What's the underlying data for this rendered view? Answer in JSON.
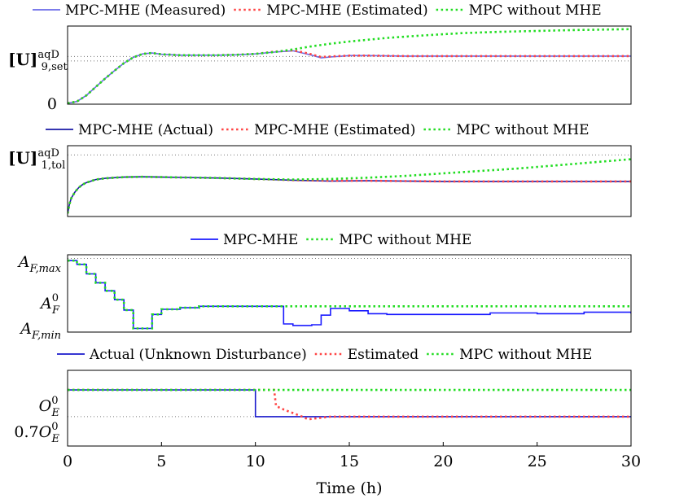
{
  "chart_data": [
    {
      "type": "line",
      "legend": [
        "MPC-MHE (Measured)",
        "MPC-MHE (Estimated)",
        "MPC without MHE"
      ],
      "legend_placement": "top",
      "ylabel_main": "[U]",
      "ylabel_sup": "aqD",
      "ylabel_sub": "9,set",
      "yticks": [
        "0"
      ],
      "xlim": [
        0,
        30
      ],
      "ylim": [
        -0.02,
        1.75
      ],
      "ref_lines": [
        0.96,
        1.06
      ],
      "series": [
        {
          "name": "MPC-MHE (Measured)",
          "color": "#6a6ae8",
          "style": "solid",
          "x": [
            0,
            0.5,
            1,
            1.5,
            2,
            2.5,
            3,
            3.5,
            4,
            4.5,
            5,
            6,
            7,
            8,
            9,
            10,
            11,
            12,
            13,
            13.5,
            14,
            15,
            16,
            18,
            20,
            25,
            30
          ],
          "y": [
            0,
            0.04,
            0.18,
            0.37,
            0.56,
            0.74,
            0.91,
            1.04,
            1.12,
            1.14,
            1.11,
            1.09,
            1.09,
            1.09,
            1.1,
            1.12,
            1.16,
            1.19,
            1.09,
            1.03,
            1.05,
            1.08,
            1.08,
            1.07,
            1.07,
            1.07,
            1.07
          ]
        },
        {
          "name": "MPC-MHE (Estimated)",
          "color": "#ff4444",
          "style": "dotted",
          "x": [
            0,
            0.5,
            1,
            1.5,
            2,
            2.5,
            3,
            3.5,
            4,
            4.5,
            5,
            6,
            7,
            8,
            9,
            10,
            11,
            12,
            12.8,
            13.5,
            14,
            15,
            16,
            18,
            20,
            25,
            30
          ],
          "y": [
            0,
            0.04,
            0.18,
            0.37,
            0.56,
            0.74,
            0.91,
            1.04,
            1.12,
            1.14,
            1.11,
            1.09,
            1.09,
            1.09,
            1.1,
            1.12,
            1.17,
            1.2,
            1.13,
            1.05,
            1.06,
            1.08,
            1.08,
            1.07,
            1.07,
            1.07,
            1.07
          ]
        },
        {
          "name": "MPC without MHE",
          "color": "#22dd22",
          "style": "dotted",
          "x": [
            0,
            0.5,
            1,
            1.5,
            2,
            2.5,
            3,
            3.5,
            4,
            4.5,
            5,
            6,
            7,
            8,
            9,
            10,
            11,
            12,
            13,
            14,
            15,
            17,
            19,
            21,
            23,
            25,
            27,
            30
          ],
          "y": [
            0,
            0.04,
            0.18,
            0.37,
            0.56,
            0.74,
            0.91,
            1.04,
            1.12,
            1.14,
            1.11,
            1.09,
            1.09,
            1.09,
            1.1,
            1.12,
            1.16,
            1.22,
            1.29,
            1.35,
            1.4,
            1.48,
            1.54,
            1.59,
            1.62,
            1.64,
            1.66,
            1.68
          ]
        }
      ]
    },
    {
      "type": "line",
      "legend": [
        "MPC-MHE (Actual)",
        "MPC-MHE (Estimated)",
        "MPC without MHE"
      ],
      "legend_placement": "top",
      "ylabel_main": "[U]",
      "ylabel_sup": "aqD",
      "ylabel_sub": "1,tol",
      "xlim": [
        0,
        30
      ],
      "ylim": [
        0,
        1.15
      ],
      "ref_lines": [
        1
      ],
      "series": [
        {
          "name": "MPC-MHE (Actual)",
          "color": "#1a1aa6",
          "style": "solid",
          "x": [
            0,
            0.1,
            0.2,
            0.4,
            0.6,
            0.8,
            1,
            1.5,
            2,
            3,
            4,
            5,
            6,
            8,
            10,
            12,
            14,
            16,
            18,
            20,
            25,
            30
          ],
          "y": [
            0.05,
            0.2,
            0.3,
            0.4,
            0.47,
            0.52,
            0.55,
            0.6,
            0.62,
            0.64,
            0.645,
            0.64,
            0.635,
            0.625,
            0.61,
            0.59,
            0.575,
            0.58,
            0.575,
            0.57,
            0.57,
            0.57
          ]
        },
        {
          "name": "MPC-MHE (Estimated)",
          "color": "#ff4444",
          "style": "dotted",
          "x": [
            0,
            0.1,
            0.2,
            0.4,
            0.6,
            0.8,
            1,
            1.5,
            2,
            3,
            4,
            5,
            6,
            8,
            10,
            12,
            14,
            16,
            18,
            20,
            25,
            30
          ],
          "y": [
            0.05,
            0.2,
            0.3,
            0.4,
            0.47,
            0.52,
            0.55,
            0.6,
            0.62,
            0.64,
            0.645,
            0.64,
            0.635,
            0.625,
            0.61,
            0.59,
            0.58,
            0.58,
            0.575,
            0.57,
            0.57,
            0.57
          ]
        },
        {
          "name": "MPC without MHE",
          "color": "#22dd22",
          "style": "dotted",
          "x": [
            0,
            0.1,
            0.2,
            0.4,
            0.6,
            0.8,
            1,
            1.5,
            2,
            3,
            4,
            5,
            6,
            8,
            10,
            12,
            14,
            16,
            18,
            20,
            22,
            24,
            26,
            28,
            30
          ],
          "y": [
            0.05,
            0.2,
            0.3,
            0.4,
            0.47,
            0.52,
            0.55,
            0.6,
            0.62,
            0.64,
            0.645,
            0.64,
            0.635,
            0.625,
            0.61,
            0.6,
            0.61,
            0.63,
            0.66,
            0.7,
            0.74,
            0.78,
            0.83,
            0.88,
            0.93
          ]
        }
      ]
    },
    {
      "type": "line",
      "step": true,
      "legend": [
        "MPC-MHE",
        "MPC without MHE"
      ],
      "legend_placement": "top",
      "yticks": [
        "A_F,max",
        "A_F^0",
        "A_F,min"
      ],
      "xlim": [
        0,
        30
      ],
      "ylim": [
        0,
        1.05
      ],
      "ref_lines": [
        0,
        1
      ],
      "series": [
        {
          "name": "MPC-MHE",
          "color": "#1a1aff",
          "style": "solid",
          "x": [
            0,
            0.5,
            1,
            1.5,
            2,
            2.5,
            3,
            3.5,
            4.5,
            5,
            6,
            7,
            11.5,
            12,
            13,
            13.5,
            14,
            15,
            16,
            17,
            18,
            20,
            21,
            22,
            22.5,
            25,
            27,
            27.5,
            30
          ],
          "y": [
            0.97,
            0.92,
            0.79,
            0.67,
            0.56,
            0.44,
            0.3,
            0.05,
            0.24,
            0.31,
            0.33,
            0.35,
            0.11,
            0.09,
            0.1,
            0.23,
            0.32,
            0.29,
            0.25,
            0.24,
            0.24,
            0.24,
            0.24,
            0.24,
            0.26,
            0.25,
            0.25,
            0.27,
            0.25
          ]
        },
        {
          "name": "MPC without MHE",
          "color": "#22dd22",
          "style": "dotted",
          "x": [
            0,
            0.5,
            1,
            1.5,
            2,
            2.5,
            3,
            3.5,
            4.5,
            5,
            6,
            7,
            30
          ],
          "y": [
            0.97,
            0.92,
            0.79,
            0.67,
            0.56,
            0.44,
            0.3,
            0.05,
            0.24,
            0.31,
            0.33,
            0.35,
            0.35
          ]
        }
      ]
    },
    {
      "type": "line",
      "legend": [
        "Actual (Unknown Disturbance)",
        "Estimated",
        "MPC without MHE"
      ],
      "legend_placement": "top",
      "yticks": [
        "O_E^0",
        "0.7O_E^0"
      ],
      "xlabel": "Time (h)",
      "xticks": [
        "0",
        "5",
        "10",
        "15",
        "20",
        "25",
        "30"
      ],
      "xlim": [
        0,
        30
      ],
      "ylim": [
        0.37,
        1.22
      ],
      "ref_lines": [
        0.7
      ],
      "series": [
        {
          "name": "Actual (Unknown Disturbance)",
          "color": "#1a1acc",
          "style": "solid",
          "x": [
            0,
            10,
            10,
            30
          ],
          "y": [
            1,
            1,
            0.7,
            0.7
          ]
        },
        {
          "name": "Estimated",
          "color": "#ff4444",
          "style": "dotted",
          "x": [
            0,
            11,
            11.1,
            11.5,
            12,
            12.5,
            12.8,
            13.2,
            14,
            16,
            30
          ],
          "y": [
            1,
            1,
            0.82,
            0.78,
            0.74,
            0.7,
            0.67,
            0.68,
            0.7,
            0.7,
            0.7
          ]
        },
        {
          "name": "MPC without MHE",
          "color": "#22dd22",
          "style": "dotted",
          "x": [
            0,
            30
          ],
          "y": [
            1,
            1
          ]
        }
      ]
    }
  ]
}
